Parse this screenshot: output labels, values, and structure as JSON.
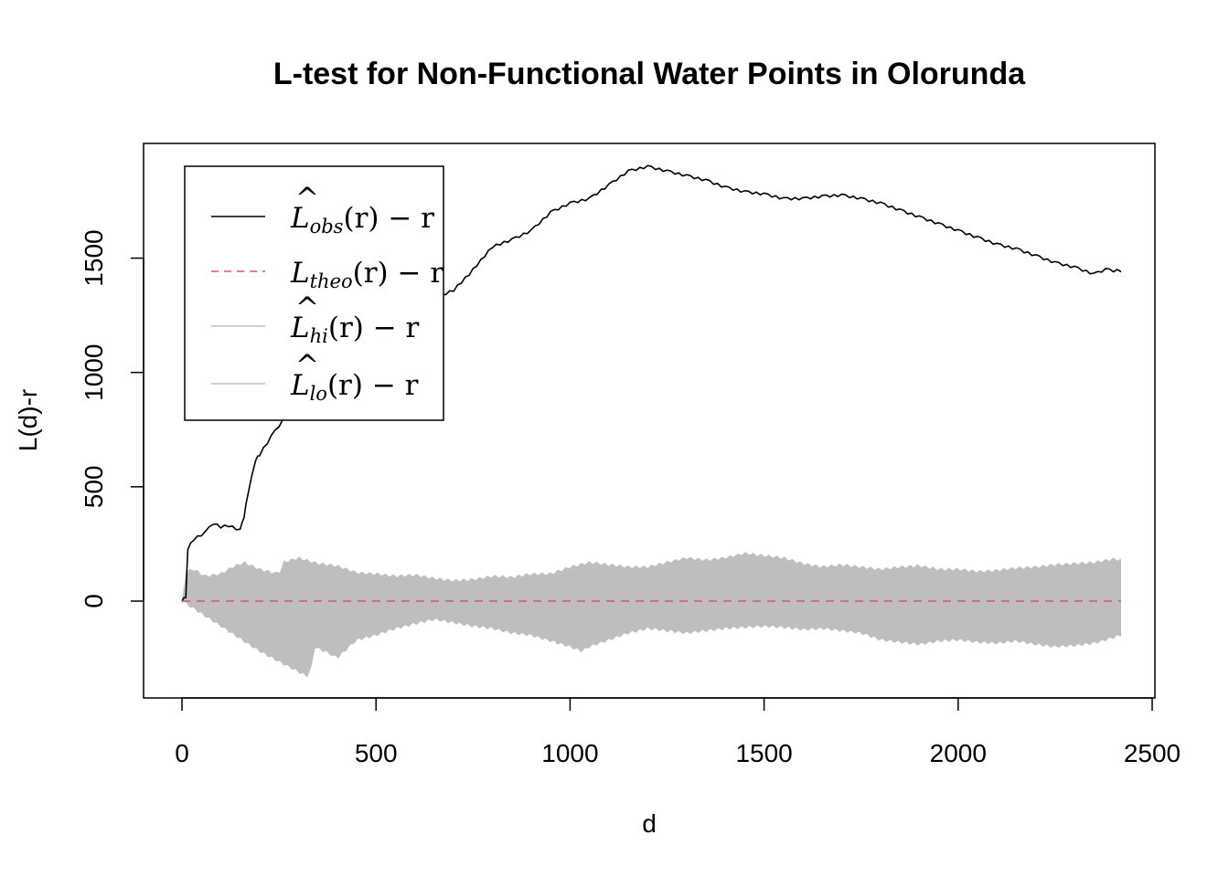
{
  "chart_data": {
    "type": "line",
    "title": "L-test for Non-Functional Water Points in Olorunda",
    "xlabel": "d",
    "ylabel": "L(d)-r",
    "xlim": [
      -100,
      2500
    ],
    "ylim": [
      -420,
      2000
    ],
    "x_ticks": [
      0,
      500,
      1000,
      1500,
      2000,
      2500
    ],
    "x_tick_labels": [
      "0",
      "500",
      "1000",
      "1500",
      "2000",
      "2500"
    ],
    "y_ticks": [
      0,
      500,
      1000,
      1500
    ],
    "y_tick_labels": [
      "0",
      "500",
      "1000",
      "1500"
    ],
    "grid": false,
    "legend_position": "top-left",
    "legend": [
      {
        "main": "L",
        "hat": "^",
        "sub": "obs",
        "tail": "(r) − r",
        "style": "solid",
        "color": "#000000"
      },
      {
        "main": "L",
        "hat": "",
        "sub": "theo",
        "tail": "(r) − r",
        "style": "dashed",
        "color": "#DF536B"
      },
      {
        "main": "L",
        "hat": "^",
        "sub": "hi",
        "tail": "(r) − r",
        "style": "solid",
        "color": "#BEBEBE"
      },
      {
        "main": "L",
        "hat": "^",
        "sub": "lo",
        "tail": "(r) − r",
        "style": "solid",
        "color": "#BEBEBE"
      }
    ],
    "series": [
      {
        "key": "obs",
        "style": "solid",
        "color": "#000000",
        "x": [
          0,
          10,
          15,
          30,
          60,
          80,
          100,
          120,
          150,
          160,
          170,
          190,
          200,
          230,
          260,
          300,
          320,
          350,
          400,
          430,
          470,
          500,
          540,
          580,
          620,
          660,
          700,
          740,
          800,
          850,
          900,
          950,
          1000,
          1050,
          1100,
          1150,
          1200,
          1250,
          1300,
          1350,
          1400,
          1450,
          1500,
          1550,
          1600,
          1650,
          1700,
          1750,
          1800,
          1850,
          1900,
          1950,
          2000,
          2050,
          2100,
          2150,
          2200,
          2250,
          2300,
          2350,
          2380,
          2400,
          2420
        ],
        "y": [
          0,
          20,
          230,
          270,
          300,
          340,
          325,
          330,
          310,
          370,
          470,
          620,
          640,
          720,
          790,
          850,
          880,
          960,
          1050,
          1130,
          1200,
          1240,
          1260,
          1300,
          1320,
          1330,
          1360,
          1430,
          1550,
          1580,
          1620,
          1700,
          1740,
          1760,
          1820,
          1880,
          1900,
          1880,
          1860,
          1840,
          1810,
          1790,
          1780,
          1760,
          1760,
          1770,
          1775,
          1760,
          1740,
          1710,
          1680,
          1650,
          1620,
          1590,
          1560,
          1540,
          1510,
          1480,
          1460,
          1430,
          1450,
          1445,
          1445
        ]
      },
      {
        "key": "theo",
        "style": "dashed",
        "color": "#DF536B",
        "x": [
          0,
          2420
        ],
        "y": [
          0,
          0
        ]
      },
      {
        "key": "hi",
        "style": "solid",
        "color": "#BEBEBE",
        "x": [
          0,
          10,
          30,
          60,
          100,
          130,
          160,
          200,
          250,
          260,
          300,
          350,
          400,
          450,
          500,
          550,
          600,
          650,
          700,
          750,
          800,
          850,
          900,
          950,
          1000,
          1050,
          1100,
          1150,
          1200,
          1250,
          1300,
          1350,
          1400,
          1450,
          1500,
          1550,
          1600,
          1650,
          1700,
          1750,
          1800,
          1850,
          1900,
          1950,
          2000,
          2050,
          2100,
          2150,
          2200,
          2250,
          2300,
          2350,
          2400,
          2420
        ],
        "y": [
          0,
          130,
          140,
          110,
          120,
          150,
          170,
          140,
          120,
          170,
          190,
          165,
          155,
          125,
          120,
          110,
          115,
          100,
          90,
          95,
          110,
          105,
          120,
          120,
          150,
          170,
          160,
          150,
          150,
          170,
          190,
          180,
          190,
          210,
          200,
          190,
          165,
          150,
          160,
          150,
          140,
          150,
          155,
          140,
          140,
          130,
          135,
          145,
          150,
          160,
          165,
          170,
          185,
          180
        ]
      },
      {
        "key": "lo",
        "style": "solid",
        "color": "#BEBEBE",
        "x": [
          0,
          100,
          200,
          300,
          330,
          340,
          380,
          400,
          450,
          500,
          550,
          600,
          650,
          700,
          750,
          800,
          850,
          900,
          950,
          1000,
          1030,
          1050,
          1100,
          1150,
          1200,
          1250,
          1300,
          1350,
          1400,
          1450,
          1500,
          1550,
          1600,
          1650,
          1700,
          1750,
          1800,
          1850,
          1900,
          1950,
          2000,
          2050,
          2100,
          2150,
          2200,
          2250,
          2300,
          2350,
          2400,
          2420
        ],
        "y": [
          0,
          -110,
          -220,
          -310,
          -335,
          -200,
          -230,
          -250,
          -170,
          -150,
          -120,
          -100,
          -80,
          -95,
          -110,
          -120,
          -140,
          -150,
          -175,
          -200,
          -220,
          -200,
          -170,
          -140,
          -120,
          -130,
          -140,
          -130,
          -120,
          -115,
          -110,
          -115,
          -125,
          -120,
          -130,
          -140,
          -170,
          -180,
          -190,
          -175,
          -170,
          -180,
          -185,
          -175,
          -190,
          -200,
          -195,
          -185,
          -160,
          -150
        ]
      }
    ]
  }
}
